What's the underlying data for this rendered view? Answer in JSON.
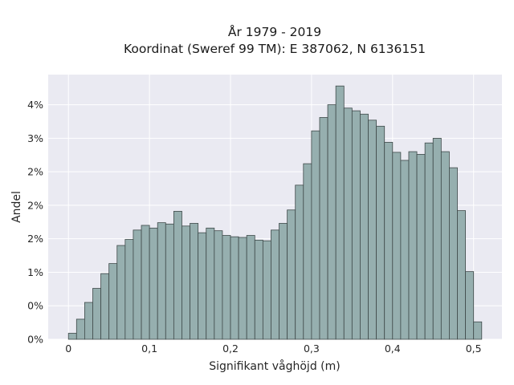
{
  "chart_data": {
    "type": "bar",
    "title_line1": "År 1979 - 2019",
    "title_line2": "Koordinat (Sweref 99 TM): E 387062, N 6136151",
    "xlabel": "Signifikant våghöjd (m)",
    "ylabel": "Andel",
    "xlim": [
      -0.025,
      0.535
    ],
    "ylim": [
      0,
      3.95
    ],
    "x_ticks": [
      {
        "value": 0,
        "label": "0"
      },
      {
        "value": 0.1,
        "label": "0,1"
      },
      {
        "value": 0.2,
        "label": "0,2"
      },
      {
        "value": 0.3,
        "label": "0,3"
      },
      {
        "value": 0.4,
        "label": "0,4"
      },
      {
        "value": 0.5,
        "label": "0,5"
      }
    ],
    "y_ticks": [
      {
        "value": 0,
        "label": "0%"
      },
      {
        "value": 0.5,
        "label": "0%"
      },
      {
        "value": 1.0,
        "label": "1%"
      },
      {
        "value": 1.5,
        "label": "2%"
      },
      {
        "value": 2.0,
        "label": "2%"
      },
      {
        "value": 2.5,
        "label": "2%"
      },
      {
        "value": 3.0,
        "label": "3%"
      },
      {
        "value": 3.5,
        "label": "4%"
      }
    ],
    "bin_width": 0.01,
    "bins_start": 0,
    "values": [
      0.09,
      0.3,
      0.55,
      0.76,
      0.98,
      1.13,
      1.4,
      1.49,
      1.63,
      1.7,
      1.66,
      1.74,
      1.72,
      1.91,
      1.69,
      1.73,
      1.59,
      1.66,
      1.62,
      1.55,
      1.53,
      1.52,
      1.55,
      1.48,
      1.47,
      1.63,
      1.73,
      1.93,
      2.3,
      2.62,
      3.11,
      3.31,
      3.5,
      3.78,
      3.45,
      3.41,
      3.36,
      3.27,
      3.18,
      2.94,
      2.79,
      2.67,
      2.8,
      2.76,
      2.93,
      3.0,
      2.8,
      2.56,
      1.92,
      1.01,
      0.26
    ],
    "grid": true,
    "colors": {
      "bar_fill": "#96afaf",
      "bar_edge": "#3f4a4a",
      "plot_bg": "#eaeaf2",
      "grid": "#ffffff"
    }
  }
}
